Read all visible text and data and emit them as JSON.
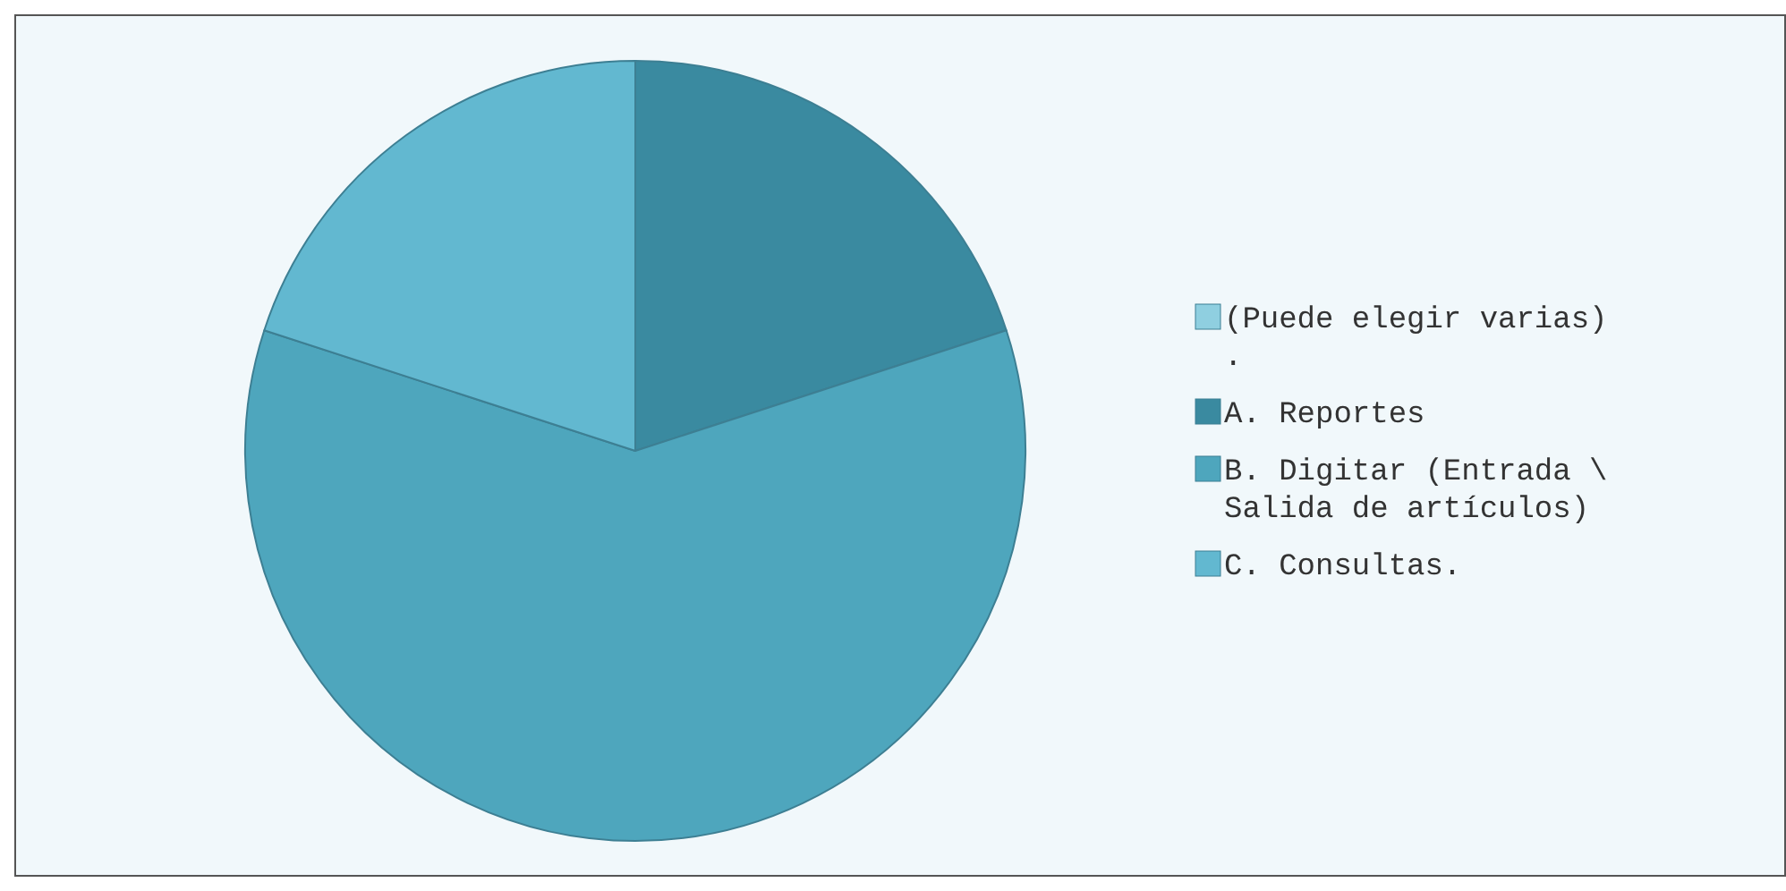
{
  "chart_data": {
    "type": "pie",
    "categories": [
      "(Puede elegir varias) .",
      "A. Reportes",
      "B. Digitar (Entrada \\ Salida de artículos)",
      "C. Consultas."
    ],
    "values": [
      0,
      20,
      60,
      20
    ],
    "colors": [
      "#8fcfe0",
      "#3a8aa0",
      "#4ea6bd",
      "#62b8d0"
    ],
    "legend": "right"
  }
}
